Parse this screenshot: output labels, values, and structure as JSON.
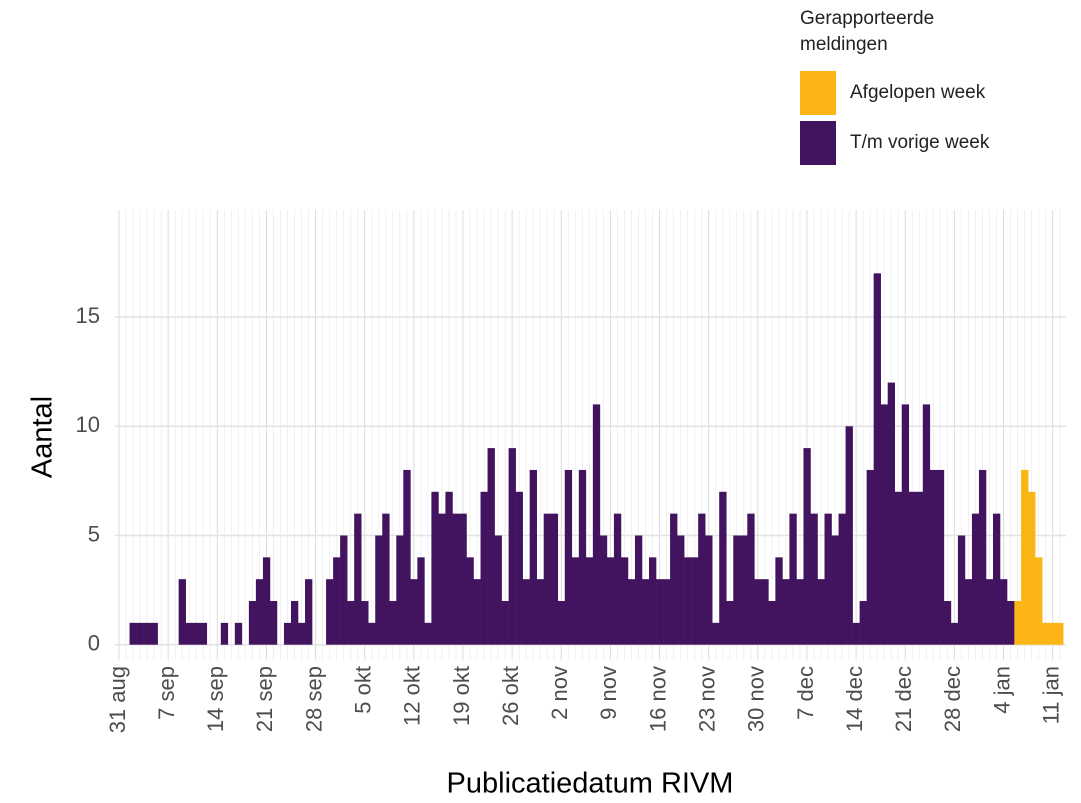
{
  "chart_data": {
    "type": "bar",
    "x_label": "Publicatiedatum RIVM",
    "y_label": "Aantal",
    "legend_title": "Gerapporteerde meldingen",
    "categories": [
      "31 aug",
      null,
      null,
      null,
      null,
      null,
      null,
      "7 sep",
      null,
      null,
      null,
      null,
      null,
      null,
      "14 sep",
      null,
      null,
      null,
      null,
      null,
      null,
      "21 sep",
      null,
      null,
      null,
      null,
      null,
      null,
      "28 sep",
      null,
      null,
      null,
      null,
      null,
      null,
      "5 okt",
      null,
      null,
      null,
      null,
      null,
      null,
      "12 okt",
      null,
      null,
      null,
      null,
      null,
      null,
      "19 okt",
      null,
      null,
      null,
      null,
      null,
      null,
      "26 okt",
      null,
      null,
      null,
      null,
      null,
      null,
      "2 nov",
      null,
      null,
      null,
      null,
      null,
      null,
      "9 nov",
      null,
      null,
      null,
      null,
      null,
      null,
      "16 nov",
      null,
      null,
      null,
      null,
      null,
      null,
      "23 nov",
      null,
      null,
      null,
      null,
      null,
      null,
      "30 nov",
      null,
      null,
      null,
      null,
      null,
      null,
      "7 dec",
      null,
      null,
      null,
      null,
      null,
      null,
      "14 dec",
      null,
      null,
      null,
      null,
      null,
      null,
      "21 dec",
      null,
      null,
      null,
      null,
      null,
      null,
      "28 dec",
      null,
      null,
      null,
      null,
      null,
      null,
      "4 jan",
      null,
      null,
      null,
      null,
      null,
      null,
      "11 jan",
      null
    ],
    "series": [
      {
        "name": "Afgelopen week",
        "color": "#fbb515",
        "values": [
          null,
          null,
          null,
          null,
          null,
          null,
          null,
          null,
          null,
          null,
          null,
          null,
          null,
          null,
          null,
          null,
          null,
          null,
          null,
          null,
          null,
          null,
          null,
          null,
          null,
          null,
          null,
          null,
          null,
          null,
          null,
          null,
          null,
          null,
          null,
          null,
          null,
          null,
          null,
          null,
          null,
          null,
          null,
          null,
          null,
          null,
          null,
          null,
          null,
          null,
          null,
          null,
          null,
          null,
          null,
          null,
          null,
          null,
          null,
          null,
          null,
          null,
          null,
          null,
          null,
          null,
          null,
          null,
          null,
          null,
          null,
          null,
          null,
          null,
          null,
          null,
          null,
          null,
          null,
          null,
          null,
          null,
          null,
          null,
          null,
          null,
          null,
          null,
          null,
          null,
          null,
          null,
          null,
          null,
          null,
          null,
          null,
          null,
          null,
          null,
          null,
          null,
          null,
          null,
          null,
          null,
          null,
          null,
          null,
          null,
          null,
          null,
          null,
          null,
          null,
          null,
          null,
          null,
          null,
          null,
          null,
          null,
          null,
          null,
          null,
          null,
          null,
          null,
          2,
          8,
          7,
          4,
          1,
          1,
          1
        ]
      },
      {
        "name": "T/m vorige week",
        "color": "#42145f",
        "values": [
          0,
          0,
          1,
          1,
          1,
          1,
          0,
          0,
          0,
          3,
          1,
          1,
          1,
          0,
          0,
          1,
          0,
          1,
          0,
          2,
          3,
          4,
          2,
          0,
          1,
          2,
          1,
          3,
          0,
          0,
          3,
          4,
          5,
          2,
          6,
          2,
          1,
          5,
          6,
          2,
          5,
          8,
          3,
          4,
          1,
          7,
          6,
          7,
          6,
          6,
          4,
          3,
          7,
          9,
          5,
          2,
          9,
          7,
          3,
          8,
          3,
          6,
          6,
          2,
          8,
          4,
          8,
          4,
          11,
          5,
          4,
          6,
          4,
          3,
          5,
          3,
          4,
          3,
          3,
          6,
          5,
          4,
          4,
          6,
          5,
          1,
          7,
          2,
          5,
          5,
          6,
          3,
          3,
          2,
          4,
          3,
          6,
          3,
          9,
          6,
          3,
          6,
          5,
          6,
          10,
          1,
          2,
          8,
          17,
          11,
          12,
          7,
          11,
          7,
          7,
          11,
          8,
          8,
          2,
          1,
          5,
          3,
          6,
          8,
          3,
          6,
          3,
          2,
          null,
          null,
          null,
          null,
          null,
          null,
          null
        ]
      }
    ],
    "ylim": [
      -0.7,
      19.9
    ],
    "yticks": [
      0,
      5,
      10,
      15
    ],
    "grid": true,
    "legend": "top-right"
  }
}
